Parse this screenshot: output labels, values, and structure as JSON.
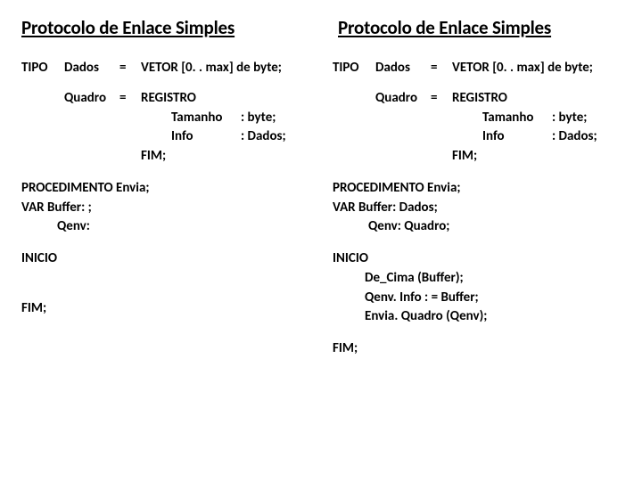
{
  "colors": {
    "background": "#ffffff",
    "text": "#000000"
  },
  "typography": {
    "title_fontsize": 21,
    "body_fontsize": 15,
    "weight": "bold",
    "family": "Calibri"
  },
  "left": {
    "title": "Protocolo de Enlace Simples",
    "tipo": {
      "kw": "TIPO",
      "name": "Dados",
      "eq": "=",
      "val": "VETOR [0. . max] de byte;"
    },
    "quadro": {
      "name": "Quadro",
      "eq": "=",
      "reg": "REGISTRO",
      "f1_label": "Tamanho",
      "f1_type": ": byte;",
      "f2_label": "Info",
      "f2_type": ": Dados;",
      "fim": "FIM;"
    },
    "proc": {
      "l1": "PROCEDIMENTO Envia;",
      "l2": "VAR   Buffer: ;",
      "l3": "Qenv:"
    },
    "inicio": "INICIO",
    "fim": "FIM;"
  },
  "right": {
    "title": "Protocolo de Enlace Simples",
    "tipo": {
      "kw": "TIPO",
      "name": "Dados",
      "eq": "=",
      "val": "VETOR [0. . max] de byte;"
    },
    "quadro": {
      "name": "Quadro",
      "eq": "=",
      "reg": "REGISTRO",
      "f1_label": "Tamanho",
      "f1_type": ": byte;",
      "f2_label": "Info",
      "f2_type": ": Dados;",
      "fim": "FIM;"
    },
    "proc": {
      "l1": "PROCEDIMENTO Envia;",
      "l2": "VAR   Buffer: Dados;",
      "l3": "Qenv: Quadro;"
    },
    "inicio": "INICIO",
    "body": {
      "b1": "De_Cima  (Buffer);",
      "b2": "Qenv. Info : = Buffer;",
      "b3": "Envia. Quadro (Qenv);"
    },
    "fim": "FIM;"
  }
}
